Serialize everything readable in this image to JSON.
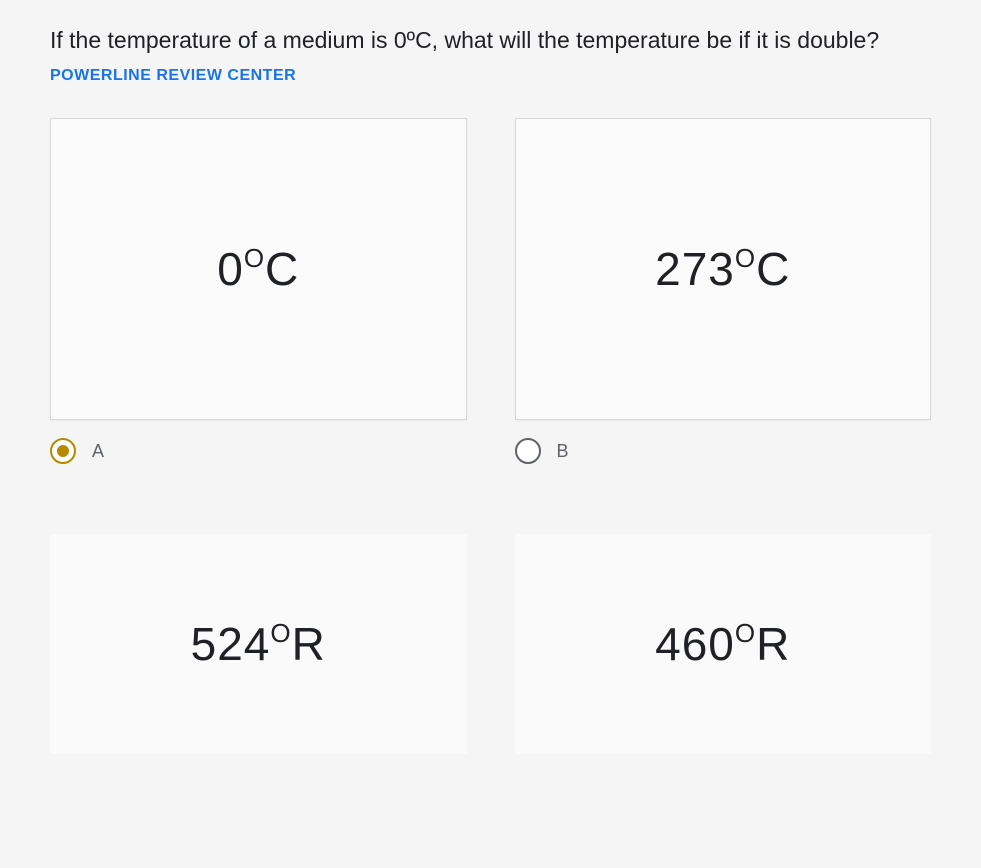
{
  "question": {
    "text_part1": "If the temperature of a medium is 0ºC, what will the temperature be if it is double? ",
    "brand": "POWERLINE REVIEW CENTER"
  },
  "options": [
    {
      "id": "A",
      "label": "A",
      "value_main": "0",
      "value_sup": "O",
      "value_unit": "C",
      "selected": true
    },
    {
      "id": "B",
      "label": "B",
      "value_main": "273",
      "value_sup": "O",
      "value_unit": "C",
      "selected": false
    },
    {
      "id": "C",
      "label": "",
      "value_main": "524",
      "value_sup": "O",
      "value_unit": "R",
      "selected": false
    },
    {
      "id": "D",
      "label": "",
      "value_main": "460",
      "value_sup": "O",
      "value_unit": "R",
      "selected": false
    }
  ],
  "colors": {
    "brand_text": "#1a73e8",
    "selected_radio": "#b58a00",
    "text": "#202124",
    "border": "#d8d8d8"
  }
}
